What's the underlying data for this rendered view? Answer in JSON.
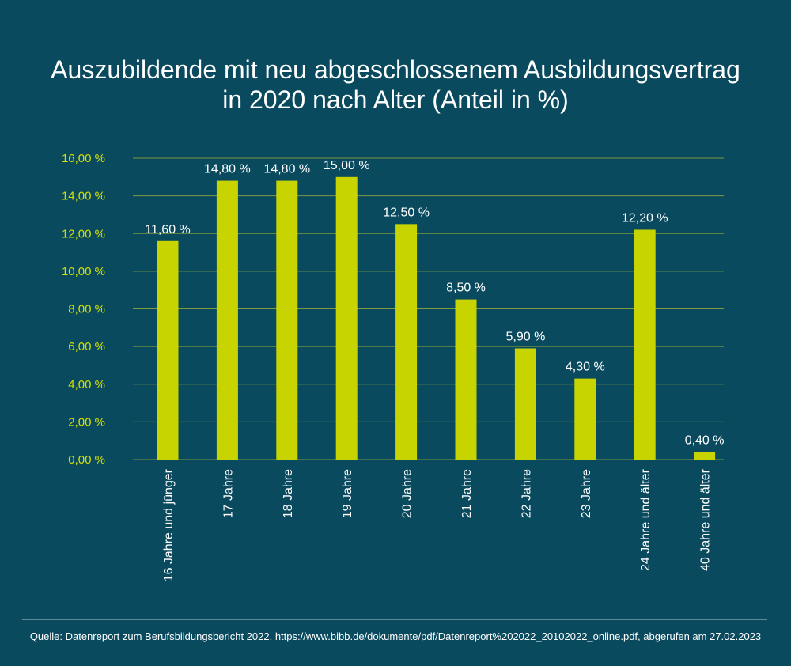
{
  "title_lines": [
    "Auszubildende mit neu abgeschlossenem Ausbildungsvertrag",
    "in 2020 nach Alter (Anteil in %)"
  ],
  "source": "Quelle: Datenreport zum Berufsbildungsbericht 2022, https://www.bibb.de/dokumente/pdf/Datenreport%202022_20102022_online.pdf, abgerufen am 27.02.2023",
  "colors": {
    "background": "#0a4a5e",
    "bar": "#c8d400",
    "tick_label": "#d4e000",
    "grid": "#7a9a3c",
    "text": "#ffffff"
  },
  "chart_data": {
    "type": "bar",
    "categories": [
      "16 Jahre und jünger",
      "17 Jahre",
      "18 Jahre",
      "19 Jahre",
      "20 Jahre",
      "21 Jahre",
      "22 Jahre",
      "23 Jahre",
      "24 Jahre und älter",
      "40 Jahre und älter"
    ],
    "values": [
      11.6,
      14.8,
      14.8,
      15.0,
      12.5,
      8.5,
      5.9,
      4.3,
      12.2,
      0.4
    ],
    "value_labels": [
      "11,60 %",
      "14,80 %",
      "14,80 %",
      "15,00 %",
      "12,50 %",
      "8,50 %",
      "5,90 %",
      "4,30 %",
      "12,20 %",
      "0,40 %"
    ],
    "y_ticks": [
      0,
      2,
      4,
      6,
      8,
      10,
      12,
      14,
      16
    ],
    "y_tick_labels": [
      "0,00 %",
      "2,00 %",
      "4,00 %",
      "6,00 %",
      "8,00 %",
      "10,00 %",
      "12,00 %",
      "14,00 %",
      "16,00 %"
    ],
    "ylim": [
      0,
      16
    ],
    "grid": true,
    "legend": "none"
  }
}
